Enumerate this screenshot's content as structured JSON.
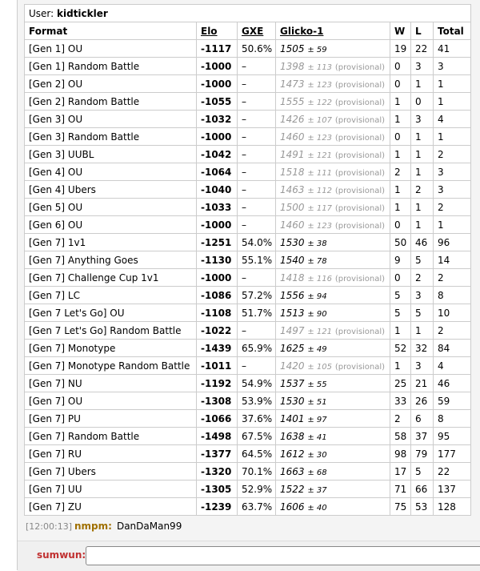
{
  "user_label": "User:",
  "username": "kidtickler",
  "table": {
    "headers": [
      "Format",
      "Elo",
      "GXE",
      "Glicko-1",
      "W",
      "L",
      "Total"
    ],
    "rows": [
      {
        "format": "[Gen 1] OU",
        "elo": "-1117",
        "gxe": "50.6%",
        "rating": "1505",
        "deviation": "± 59",
        "w": "19",
        "l": "22",
        "total": "41"
      },
      {
        "format": "[Gen 1] Random Battle",
        "elo": "-1000",
        "gxe": "–",
        "rating": "1398",
        "deviation": "± 113",
        "note": "(provisional)",
        "w": "0",
        "l": "3",
        "total": "3"
      },
      {
        "format": "[Gen 2] OU",
        "elo": "-1000",
        "gxe": "–",
        "rating": "1473",
        "deviation": "± 123",
        "note": "(provisional)",
        "w": "0",
        "l": "1",
        "total": "1"
      },
      {
        "format": "[Gen 2] Random Battle",
        "elo": "-1055",
        "gxe": "–",
        "rating": "1555",
        "deviation": "± 122",
        "note": "(provisional)",
        "w": "1",
        "l": "0",
        "total": "1"
      },
      {
        "format": "[Gen 3] OU",
        "elo": "-1032",
        "gxe": "–",
        "rating": "1426",
        "deviation": "± 107",
        "note": "(provisional)",
        "w": "1",
        "l": "3",
        "total": "4"
      },
      {
        "format": "[Gen 3] Random Battle",
        "elo": "-1000",
        "gxe": "–",
        "rating": "1460",
        "deviation": "± 123",
        "note": "(provisional)",
        "w": "0",
        "l": "1",
        "total": "1"
      },
      {
        "format": "[Gen 3] UUBL",
        "elo": "-1042",
        "gxe": "–",
        "rating": "1491",
        "deviation": "± 121",
        "note": "(provisional)",
        "w": "1",
        "l": "1",
        "total": "2"
      },
      {
        "format": "[Gen 4] OU",
        "elo": "-1064",
        "gxe": "–",
        "rating": "1518",
        "deviation": "± 111",
        "note": "(provisional)",
        "w": "2",
        "l": "1",
        "total": "3"
      },
      {
        "format": "[Gen 4] Ubers",
        "elo": "-1040",
        "gxe": "–",
        "rating": "1463",
        "deviation": "± 112",
        "note": "(provisional)",
        "w": "1",
        "l": "2",
        "total": "3"
      },
      {
        "format": "[Gen 5] OU",
        "elo": "-1033",
        "gxe": "–",
        "rating": "1500",
        "deviation": "± 117",
        "note": "(provisional)",
        "w": "1",
        "l": "1",
        "total": "2"
      },
      {
        "format": "[Gen 6] OU",
        "elo": "-1000",
        "gxe": "–",
        "rating": "1460",
        "deviation": "± 123",
        "note": "(provisional)",
        "w": "0",
        "l": "1",
        "total": "1"
      },
      {
        "format": "[Gen 7] 1v1",
        "elo": "-1251",
        "gxe": "54.0%",
        "rating": "1530",
        "deviation": "± 38",
        "w": "50",
        "l": "46",
        "total": "96"
      },
      {
        "format": "[Gen 7] Anything Goes",
        "elo": "-1130",
        "gxe": "55.1%",
        "rating": "1540",
        "deviation": "± 78",
        "w": "9",
        "l": "5",
        "total": "14"
      },
      {
        "format": "[Gen 7] Challenge Cup 1v1",
        "elo": "-1000",
        "gxe": "–",
        "rating": "1418",
        "deviation": "± 116",
        "note": "(provisional)",
        "w": "0",
        "l": "2",
        "total": "2"
      },
      {
        "format": "[Gen 7] LC",
        "elo": "-1086",
        "gxe": "57.2%",
        "rating": "1556",
        "deviation": "± 94",
        "w": "5",
        "l": "3",
        "total": "8"
      },
      {
        "format": "[Gen 7 Let's Go] OU",
        "elo": "-1108",
        "gxe": "51.7%",
        "rating": "1513",
        "deviation": "± 90",
        "w": "5",
        "l": "5",
        "total": "10"
      },
      {
        "format": "[Gen 7 Let's Go] Random Battle",
        "elo": "-1022",
        "gxe": "–",
        "rating": "1497",
        "deviation": "± 121",
        "note": "(provisional)",
        "w": "1",
        "l": "1",
        "total": "2"
      },
      {
        "format": "[Gen 7] Monotype",
        "elo": "-1439",
        "gxe": "65.9%",
        "rating": "1625",
        "deviation": "± 49",
        "w": "52",
        "l": "32",
        "total": "84"
      },
      {
        "format": "[Gen 7] Monotype Random Battle",
        "elo": "-1011",
        "gxe": "–",
        "rating": "1420",
        "deviation": "± 105",
        "note": "(provisional)",
        "w": "1",
        "l": "3",
        "total": "4"
      },
      {
        "format": "[Gen 7] NU",
        "elo": "-1192",
        "gxe": "54.9%",
        "rating": "1537",
        "deviation": "± 55",
        "w": "25",
        "l": "21",
        "total": "46"
      },
      {
        "format": "[Gen 7] OU",
        "elo": "-1308",
        "gxe": "53.9%",
        "rating": "1530",
        "deviation": "± 51",
        "w": "33",
        "l": "26",
        "total": "59"
      },
      {
        "format": "[Gen 7] PU",
        "elo": "-1066",
        "gxe": "37.6%",
        "rating": "1401",
        "deviation": "± 97",
        "w": "2",
        "l": "6",
        "total": "8"
      },
      {
        "format": "[Gen 7] Random Battle",
        "elo": "-1498",
        "gxe": "67.5%",
        "rating": "1638",
        "deviation": "± 41",
        "w": "58",
        "l": "37",
        "total": "95"
      },
      {
        "format": "[Gen 7] RU",
        "elo": "-1377",
        "gxe": "64.5%",
        "rating": "1612",
        "deviation": "± 30",
        "w": "98",
        "l": "79",
        "total": "177"
      },
      {
        "format": "[Gen 7] Ubers",
        "elo": "-1320",
        "gxe": "70.1%",
        "rating": "1663",
        "deviation": "± 68",
        "w": "17",
        "l": "5",
        "total": "22"
      },
      {
        "format": "[Gen 7] UU",
        "elo": "-1305",
        "gxe": "52.9%",
        "rating": "1522",
        "deviation": "± 37",
        "w": "71",
        "l": "66",
        "total": "137"
      },
      {
        "format": "[Gen 7] ZU",
        "elo": "-1239",
        "gxe": "63.7%",
        "rating": "1606",
        "deviation": "± 40",
        "w": "75",
        "l": "53",
        "total": "128"
      }
    ]
  },
  "chat": {
    "time": "[12:00:13]",
    "user": "nmpm:",
    "message": "DanDaMan99"
  },
  "input": {
    "user": "sumwun:"
  }
}
